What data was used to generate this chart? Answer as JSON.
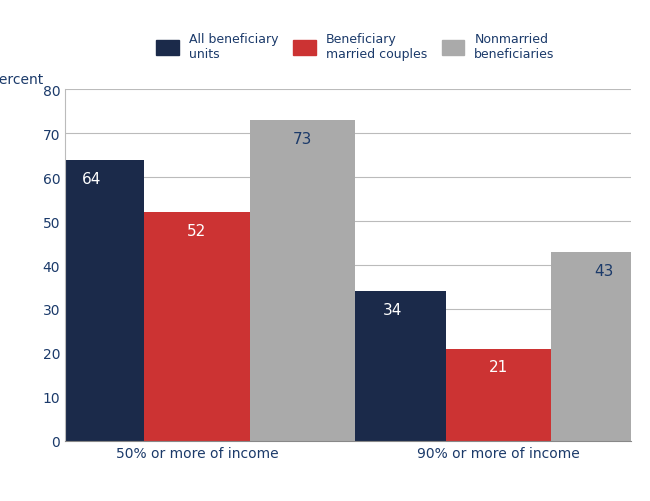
{
  "groups": [
    "50% or more of income",
    "90% or more of income"
  ],
  "series": [
    {
      "name": "All beneficiary\nunits",
      "values": [
        64,
        34
      ],
      "color": "#1b2a4a",
      "label_color": "#ffffff"
    },
    {
      "name": "Beneficiary\nmarried couples",
      "values": [
        52,
        21
      ],
      "color": "#cc3333",
      "label_color": "#ffffff"
    },
    {
      "name": "Nonmarried\nbeneficiaries",
      "values": [
        73,
        43
      ],
      "color": "#aaaaaa",
      "label_color": "#1b3a6a"
    }
  ],
  "ylabel": "Percent",
  "ylim": [
    0,
    80
  ],
  "yticks": [
    0,
    10,
    20,
    30,
    40,
    50,
    60,
    70,
    80
  ],
  "bar_width": 0.28,
  "group_centers": [
    0.35,
    1.15
  ],
  "xlim": [
    0.0,
    1.5
  ],
  "title_color": "#1b3a6a",
  "background_color": "#ffffff",
  "grid_color": "#bbbbbb",
  "label_fontsize": 11,
  "tick_fontsize": 10,
  "legend_fontsize": 9
}
